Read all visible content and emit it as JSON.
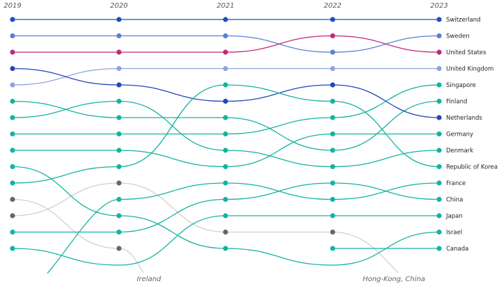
{
  "chart_data": {
    "type": "bump",
    "title": "",
    "years": [
      "2019",
      "2020",
      "2021",
      "2022",
      "2023"
    ],
    "rank_range": [
      1,
      15
    ],
    "series": [
      {
        "name": "Switzerland",
        "color": "#1f4fbf",
        "ranks": [
          1,
          1,
          1,
          1,
          1
        ]
      },
      {
        "name": "Sweden",
        "color": "#5b7fd6",
        "ranks": [
          2,
          2,
          2,
          3,
          2
        ]
      },
      {
        "name": "United States",
        "color": "#c0287a",
        "ranks": [
          3,
          3,
          3,
          2,
          3
        ]
      },
      {
        "name": "United Kingdom",
        "color": "#8ea4dc",
        "ranks": [
          5,
          4,
          4,
          4,
          4
        ]
      },
      {
        "name": "Singapore",
        "color": "#14b3a0",
        "ranks": [
          8,
          8,
          8,
          7,
          5
        ]
      },
      {
        "name": "Finland",
        "color": "#14b3a0",
        "ranks": [
          6,
          7,
          7,
          9,
          6
        ]
      },
      {
        "name": "Netherlands",
        "color": "#2347b8",
        "ranks": [
          4,
          5,
          6,
          5,
          7
        ]
      },
      {
        "name": "Germany",
        "color": "#14b3a0",
        "ranks": [
          9,
          9,
          10,
          8,
          8
        ]
      },
      {
        "name": "Denmark",
        "color": "#14b3a0",
        "ranks": [
          7,
          6,
          9,
          10,
          9
        ]
      },
      {
        "name": "Republic of Korea",
        "color": "#14b3a0",
        "ranks": [
          11,
          10,
          5,
          6,
          10
        ]
      },
      {
        "name": "France",
        "color": "#14b3a0",
        "ranks": [
          null,
          12,
          11,
          12,
          11
        ]
      },
      {
        "name": "China",
        "color": "#14b3a0",
        "ranks": [
          14,
          14,
          12,
          11,
          12
        ]
      },
      {
        "name": "Japan",
        "color": "#14b3a0",
        "ranks": [
          15,
          16,
          13,
          13,
          13
        ]
      },
      {
        "name": "Israel",
        "color": "#14b3a0",
        "ranks": [
          10,
          13,
          15,
          16,
          14
        ]
      },
      {
        "name": "Canada",
        "color": "#14b3a0",
        "ranks": [
          null,
          null,
          null,
          15,
          15
        ]
      },
      {
        "name": "Ireland",
        "color": "#d0d0d0",
        "marker": "#666666",
        "ranks": [
          12,
          15,
          null,
          null,
          null
        ]
      },
      {
        "name": "Hong-Kong, China",
        "color": "#d0d0d0",
        "marker": "#666666",
        "ranks": [
          13,
          11,
          14,
          14,
          null
        ]
      }
    ],
    "exit_labels": [
      "Ireland",
      "Hong-Kong, China"
    ]
  }
}
